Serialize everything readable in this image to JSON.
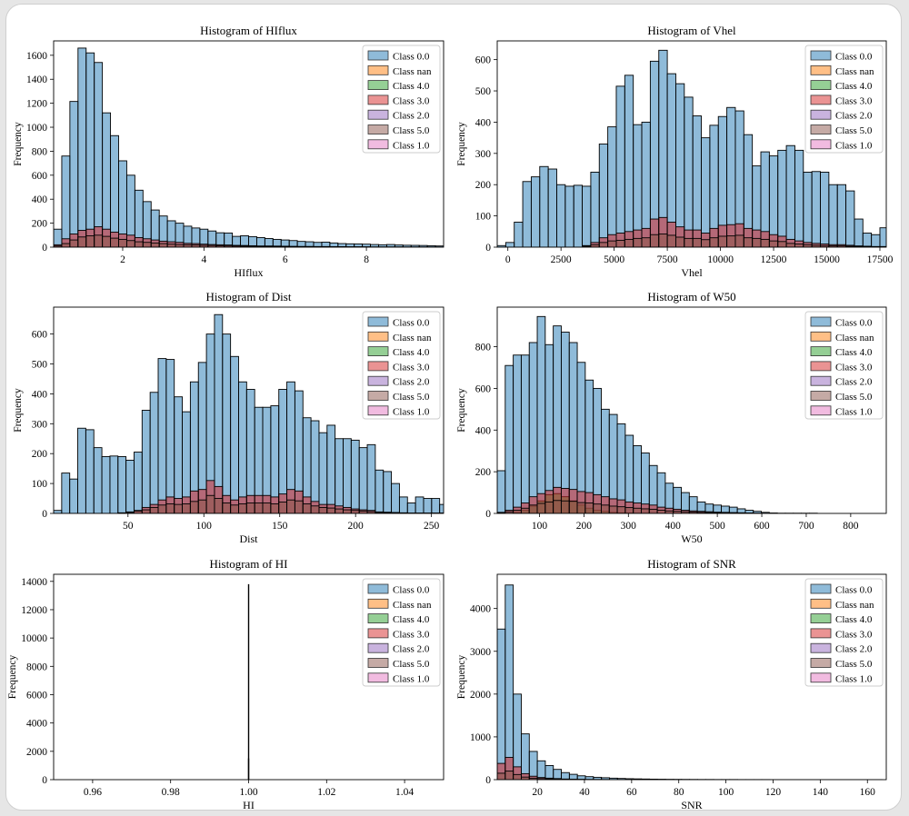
{
  "figure": {
    "colors": {
      "Class 0.0": "#1f77b4",
      "Class nan": "#ff7f0e",
      "Class 4.0": "#2ca02c",
      "Class 3.0": "#d62728",
      "Class 2.0": "#9467bd",
      "Class 5.0": "#8c564b",
      "Class 1.0": "#e377c2"
    }
  },
  "chart_data": [
    {
      "type": "bar",
      "title": "Histogram of HIflux",
      "xlabel": "HIflux",
      "ylabel": "Frequency",
      "xlim": [
        0.3,
        9.9
      ],
      "ylim": [
        0,
        1720
      ],
      "xticks": [
        2,
        4,
        6,
        8
      ],
      "yticks": [
        0,
        200,
        400,
        600,
        800,
        1000,
        1200,
        1400,
        1600
      ],
      "legend": "top-right",
      "bin_start": 0.3,
      "bin_width": 0.2,
      "series": [
        {
          "name": "Class 0.0",
          "values": [
            150,
            760,
            1215,
            1660,
            1620,
            1540,
            1120,
            930,
            720,
            600,
            475,
            380,
            310,
            260,
            220,
            200,
            175,
            160,
            150,
            135,
            120,
            118,
            90,
            95,
            88,
            80,
            72,
            65,
            60,
            55,
            48,
            45,
            40,
            42,
            35,
            30,
            28,
            27,
            25,
            22,
            20,
            22,
            18,
            16,
            15,
            14,
            12,
            10
          ]
        },
        {
          "name": "Class 3.0",
          "values": [
            20,
            70,
            110,
            140,
            150,
            170,
            150,
            125,
            110,
            100,
            80,
            70,
            60,
            50,
            45,
            40,
            32,
            30,
            25,
            22,
            20,
            18,
            15,
            14,
            12,
            10,
            10,
            9,
            8,
            7,
            6,
            6,
            5,
            5,
            4,
            4,
            3,
            3,
            3,
            2,
            2,
            2,
            2,
            1,
            1,
            1,
            1,
            1
          ]
        },
        {
          "name": "Class 5.0",
          "values": [
            10,
            30,
            60,
            85,
            95,
            100,
            90,
            75,
            65,
            55,
            45,
            40,
            35,
            30,
            25,
            22,
            20,
            18,
            15,
            14,
            12,
            10,
            9,
            8,
            7,
            6,
            6,
            5,
            5,
            4,
            4,
            3,
            3,
            3,
            2,
            2,
            2,
            2,
            1,
            1,
            1,
            1,
            1,
            1,
            1,
            1,
            1,
            1
          ]
        }
      ]
    },
    {
      "type": "bar",
      "title": "Histogram of Vhel",
      "xlabel": "Vhel",
      "ylabel": "Frequency",
      "xlim": [
        -500,
        17800
      ],
      "ylim": [
        0,
        660
      ],
      "xticks": [
        0,
        2500,
        5000,
        7500,
        10000,
        12500,
        15000,
        17500
      ],
      "yticks": [
        0,
        100,
        200,
        300,
        400,
        500,
        600
      ],
      "legend": "top-right",
      "bin_start": -500,
      "bin_width": 400,
      "series": [
        {
          "name": "Class 0.0",
          "values": [
            5,
            15,
            80,
            210,
            225,
            258,
            250,
            200,
            195,
            198,
            195,
            240,
            330,
            385,
            515,
            550,
            392,
            400,
            595,
            630,
            555,
            523,
            480,
            420,
            350,
            390,
            418,
            447,
            436,
            360,
            260,
            305,
            292,
            310,
            325,
            310,
            240,
            242,
            240,
            200,
            200,
            180,
            90,
            45,
            40,
            62,
            50,
            42,
            28
          ]
        },
        {
          "name": "Class 3.0",
          "values": [
            0,
            0,
            0,
            0,
            0,
            0,
            0,
            0,
            0,
            0,
            5,
            15,
            30,
            40,
            45,
            50,
            55,
            60,
            90,
            95,
            80,
            65,
            55,
            55,
            45,
            60,
            70,
            72,
            75,
            60,
            55,
            50,
            40,
            35,
            25,
            20,
            15,
            12,
            10,
            8,
            8,
            6,
            4,
            3,
            2,
            2,
            2,
            1,
            1
          ]
        },
        {
          "name": "Class 5.0",
          "values": [
            0,
            0,
            0,
            0,
            0,
            0,
            0,
            0,
            0,
            0,
            3,
            8,
            15,
            20,
            22,
            25,
            28,
            30,
            40,
            42,
            38,
            32,
            28,
            28,
            24,
            30,
            35,
            36,
            38,
            30,
            28,
            25,
            20,
            18,
            12,
            10,
            8,
            6,
            5,
            4,
            4,
            3,
            2,
            2,
            1,
            1,
            1,
            1,
            1
          ]
        }
      ]
    },
    {
      "type": "bar",
      "title": "Histogram of Dist",
      "xlabel": "Dist",
      "ylabel": "Frequency",
      "xlim": [
        1,
        258
      ],
      "ylim": [
        0,
        690
      ],
      "xticks": [
        50,
        100,
        150,
        200,
        250
      ],
      "yticks": [
        0,
        100,
        200,
        300,
        400,
        500,
        600
      ],
      "legend": "top-right",
      "bin_start": 1,
      "bin_width": 5.3,
      "series": [
        {
          "name": "Class 0.0",
          "values": [
            10,
            135,
            115,
            285,
            280,
            220,
            190,
            192,
            190,
            178,
            205,
            345,
            405,
            518,
            515,
            390,
            340,
            440,
            505,
            600,
            665,
            600,
            525,
            440,
            415,
            355,
            355,
            360,
            415,
            440,
            410,
            320,
            310,
            270,
            295,
            250,
            250,
            245,
            220,
            230,
            145,
            140,
            100,
            55,
            35,
            55,
            50,
            50,
            30
          ]
        },
        {
          "name": "Class 3.0",
          "values": [
            0,
            0,
            0,
            0,
            0,
            0,
            0,
            0,
            2,
            5,
            10,
            20,
            30,
            45,
            55,
            50,
            55,
            75,
            80,
            110,
            90,
            60,
            45,
            55,
            60,
            60,
            60,
            55,
            65,
            80,
            75,
            55,
            40,
            30,
            30,
            25,
            20,
            15,
            12,
            10,
            5,
            4,
            3,
            2,
            1,
            1,
            1,
            1,
            1
          ]
        },
        {
          "name": "Class 5.0",
          "values": [
            0,
            0,
            0,
            0,
            0,
            0,
            0,
            0,
            1,
            3,
            8,
            12,
            20,
            28,
            32,
            30,
            32,
            40,
            45,
            60,
            50,
            35,
            28,
            32,
            35,
            35,
            35,
            32,
            38,
            45,
            42,
            32,
            25,
            20,
            18,
            15,
            12,
            10,
            8,
            6,
            3,
            2,
            2,
            1,
            1,
            1,
            1,
            1,
            1
          ]
        }
      ]
    },
    {
      "type": "bar",
      "title": "Histogram of W50",
      "xlabel": "W50",
      "ylabel": "Frequency",
      "xlim": [
        5,
        880
      ],
      "ylim": [
        0,
        990
      ],
      "xticks": [
        100,
        200,
        300,
        400,
        500,
        600,
        700,
        800
      ],
      "yticks": [
        0,
        200,
        400,
        600,
        800
      ],
      "legend": "top-right",
      "bin_start": 5,
      "bin_width": 18,
      "series": [
        {
          "name": "Class 0.0",
          "values": [
            205,
            710,
            760,
            760,
            820,
            945,
            810,
            900,
            870,
            820,
            725,
            640,
            600,
            500,
            475,
            430,
            375,
            325,
            290,
            230,
            195,
            145,
            125,
            100,
            80,
            55,
            45,
            40,
            35,
            30,
            22,
            15,
            10,
            5,
            2,
            1,
            1,
            1,
            1,
            1,
            0,
            0,
            0,
            0,
            0,
            0,
            0,
            0,
            0
          ]
        },
        {
          "name": "Class 4.0",
          "values": [
            0,
            0,
            5,
            15,
            35,
            60,
            90,
            95,
            80,
            60,
            40,
            25,
            15,
            10,
            5,
            3,
            2,
            1,
            1,
            0,
            0,
            0,
            0,
            0,
            0,
            0,
            0,
            0,
            0,
            0,
            0,
            0,
            0,
            0,
            0,
            0,
            0,
            0,
            0,
            0,
            0,
            0,
            0,
            0,
            0,
            0,
            0,
            0,
            0
          ]
        },
        {
          "name": "Class 3.0",
          "values": [
            5,
            15,
            30,
            50,
            80,
            95,
            110,
            125,
            120,
            115,
            105,
            100,
            90,
            80,
            70,
            65,
            55,
            50,
            45,
            40,
            30,
            25,
            20,
            15,
            12,
            10,
            8,
            6,
            5,
            4,
            3,
            2,
            1,
            1,
            0,
            0,
            0,
            0,
            0,
            0,
            0,
            0,
            0,
            0,
            0,
            0,
            0,
            0,
            0
          ]
        },
        {
          "name": "Class 5.0",
          "values": [
            2,
            8,
            15,
            25,
            40,
            48,
            55,
            62,
            60,
            58,
            52,
            50,
            45,
            40,
            35,
            32,
            28,
            25,
            22,
            20,
            15,
            12,
            10,
            8,
            6,
            5,
            4,
            3,
            2,
            2,
            1,
            1,
            1,
            0,
            0,
            0,
            0,
            0,
            0,
            0,
            0,
            0,
            0,
            0,
            0,
            0,
            0,
            0,
            0
          ]
        }
      ]
    },
    {
      "type": "bar",
      "title": "Histogram of HI",
      "xlabel": "HI",
      "ylabel": "Frequency",
      "xlim": [
        0.95,
        1.05
      ],
      "ylim": [
        0,
        14500
      ],
      "xticks": [
        0.96,
        0.98,
        1.0,
        1.02,
        1.04
      ],
      "xtick_labels": [
        "0.96",
        "0.98",
        "1.00",
        "1.02",
        "1.04"
      ],
      "yticks": [
        0,
        2000,
        4000,
        6000,
        8000,
        10000,
        12000,
        14000
      ],
      "legend": "top-right",
      "bins": [
        {
          "x": 1.0,
          "values": [
            {
              "name": "Class 0.0",
              "value": 13800
            },
            {
              "name": "Class 3.0",
              "value": 1500
            }
          ]
        }
      ]
    },
    {
      "type": "bar",
      "title": "Histogram of SNR",
      "xlabel": "SNR",
      "ylabel": "Frequency",
      "xlim": [
        3,
        168
      ],
      "ylim": [
        0,
        4800
      ],
      "xticks": [
        20,
        40,
        60,
        80,
        100,
        120,
        140,
        160
      ],
      "yticks": [
        0,
        1000,
        2000,
        3000,
        4000
      ],
      "legend": "top-right",
      "bin_start": 3,
      "bin_width": 3.4,
      "series": [
        {
          "name": "Class 0.0",
          "values": [
            3520,
            4550,
            2000,
            1070,
            660,
            440,
            330,
            240,
            165,
            125,
            90,
            70,
            55,
            45,
            35,
            28,
            22,
            18,
            15,
            12,
            10,
            8,
            7,
            6,
            5,
            4,
            4,
            3,
            3,
            3,
            2,
            2,
            2,
            2,
            1,
            1,
            1,
            1,
            1,
            1,
            1,
            1,
            1,
            1,
            1,
            1,
            1,
            1
          ]
        },
        {
          "name": "Class 3.0",
          "values": [
            380,
            520,
            300,
            140,
            80,
            50,
            35,
            25,
            15,
            10,
            8,
            5,
            4,
            3,
            2,
            2,
            1,
            1,
            1,
            0,
            0,
            0,
            0,
            0,
            0,
            0,
            0,
            0,
            0,
            0,
            0,
            0,
            0,
            0,
            0,
            0,
            0,
            0,
            0,
            0,
            0,
            0,
            0,
            0,
            0,
            0,
            0,
            0
          ]
        },
        {
          "name": "Class 5.0",
          "values": [
            150,
            200,
            120,
            60,
            35,
            25,
            18,
            12,
            8,
            5,
            4,
            3,
            2,
            2,
            1,
            1,
            1,
            0,
            0,
            0,
            0,
            0,
            0,
            0,
            0,
            0,
            0,
            0,
            0,
            0,
            0,
            0,
            0,
            0,
            0,
            0,
            0,
            0,
            0,
            0,
            0,
            0,
            0,
            0,
            0,
            0,
            0,
            0
          ]
        }
      ]
    }
  ]
}
